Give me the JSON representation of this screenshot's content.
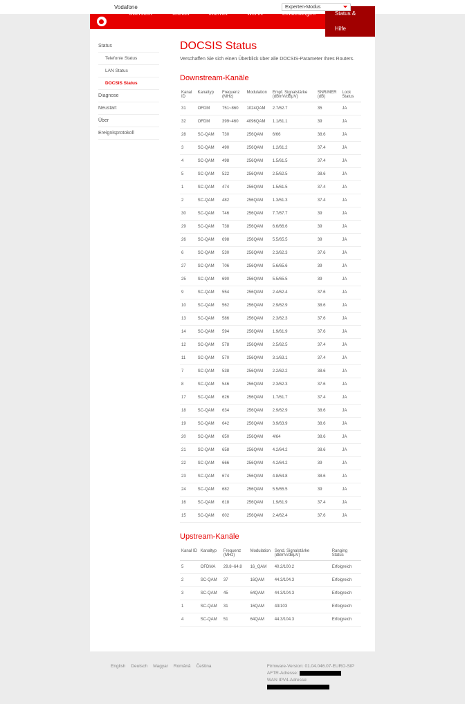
{
  "brand": "Vodafone",
  "mode": "Experten-Modus",
  "nav": [
    "Übersicht",
    "Telefon",
    "Internet",
    "WLAN",
    "Einstellungen",
    "Status & Hilfe"
  ],
  "nav_active": 5,
  "sidebar": [
    {
      "label": "Status",
      "sub": false
    },
    {
      "label": "Telefonie Status",
      "sub": true
    },
    {
      "label": "LAN Status",
      "sub": true
    },
    {
      "label": "DOCSIS Status",
      "sub": true,
      "active": true
    },
    {
      "label": "Diagnose",
      "sub": false
    },
    {
      "label": "Neustart",
      "sub": false
    },
    {
      "label": "Über",
      "sub": false
    },
    {
      "label": "Ereignisprotokoll",
      "sub": false
    }
  ],
  "title": "DOCSIS Status",
  "description": "Verschaffen Sie sich einen Überblick über alle DOCSIS-Parameter Ihres Routers.",
  "downstream_title": "Downstream-Kanäle",
  "ds_headers": [
    "Kanal ID",
    "Kanaltyp",
    "Frequenz (MHz)",
    "Modulation",
    "Empf. Signalstärke (dBmV/dBμV)",
    "SNR/MER (dB)",
    "Lock Status"
  ],
  "ds_rows": [
    [
      "31",
      "OFDM",
      "751~860",
      "1024QAM",
      "2.7/62.7",
      "35",
      "JA"
    ],
    [
      "32",
      "OFDM",
      "399~460",
      "4096QAM",
      "1.1/61.1",
      "39",
      "JA"
    ],
    [
      "28",
      "SC-QAM",
      "730",
      "256QAM",
      "6/66",
      "38.6",
      "JA"
    ],
    [
      "3",
      "SC-QAM",
      "490",
      "256QAM",
      "1.2/61.2",
      "37.4",
      "JA"
    ],
    [
      "4",
      "SC-QAM",
      "498",
      "256QAM",
      "1.5/61.5",
      "37.4",
      "JA"
    ],
    [
      "5",
      "SC-QAM",
      "522",
      "256QAM",
      "2.5/62.5",
      "38.6",
      "JA"
    ],
    [
      "1",
      "SC-QAM",
      "474",
      "256QAM",
      "1.5/61.5",
      "37.4",
      "JA"
    ],
    [
      "2",
      "SC-QAM",
      "482",
      "256QAM",
      "1.3/61.3",
      "37.4",
      "JA"
    ],
    [
      "30",
      "SC-QAM",
      "746",
      "256QAM",
      "7.7/67.7",
      "39",
      "JA"
    ],
    [
      "29",
      "SC-QAM",
      "738",
      "256QAM",
      "6.6/66.6",
      "39",
      "JA"
    ],
    [
      "26",
      "SC-QAM",
      "698",
      "256QAM",
      "5.5/65.5",
      "39",
      "JA"
    ],
    [
      "6",
      "SC-QAM",
      "530",
      "256QAM",
      "2.3/62.3",
      "37.6",
      "JA"
    ],
    [
      "27",
      "SC-QAM",
      "706",
      "256QAM",
      "5.6/65.6",
      "39",
      "JA"
    ],
    [
      "25",
      "SC-QAM",
      "690",
      "256QAM",
      "5.5/65.5",
      "39",
      "JA"
    ],
    [
      "9",
      "SC-QAM",
      "554",
      "256QAM",
      "2.4/62.4",
      "37.6",
      "JA"
    ],
    [
      "10",
      "SC-QAM",
      "562",
      "256QAM",
      "2.9/62.9",
      "38.6",
      "JA"
    ],
    [
      "13",
      "SC-QAM",
      "586",
      "256QAM",
      "2.3/62.3",
      "37.6",
      "JA"
    ],
    [
      "14",
      "SC-QAM",
      "594",
      "256QAM",
      "1.9/61.9",
      "37.6",
      "JA"
    ],
    [
      "12",
      "SC-QAM",
      "578",
      "256QAM",
      "2.5/62.5",
      "37.4",
      "JA"
    ],
    [
      "11",
      "SC-QAM",
      "570",
      "256QAM",
      "3.1/63.1",
      "37.4",
      "JA"
    ],
    [
      "7",
      "SC-QAM",
      "538",
      "256QAM",
      "2.2/62.2",
      "38.6",
      "JA"
    ],
    [
      "8",
      "SC-QAM",
      "546",
      "256QAM",
      "2.3/62.3",
      "37.6",
      "JA"
    ],
    [
      "17",
      "SC-QAM",
      "626",
      "256QAM",
      "1.7/61.7",
      "37.4",
      "JA"
    ],
    [
      "18",
      "SC-QAM",
      "634",
      "256QAM",
      "2.9/62.9",
      "38.6",
      "JA"
    ],
    [
      "19",
      "SC-QAM",
      "642",
      "256QAM",
      "3.9/63.9",
      "38.6",
      "JA"
    ],
    [
      "20",
      "SC-QAM",
      "650",
      "256QAM",
      "4/64",
      "38.6",
      "JA"
    ],
    [
      "21",
      "SC-QAM",
      "658",
      "256QAM",
      "4.2/64.2",
      "38.6",
      "JA"
    ],
    [
      "22",
      "SC-QAM",
      "666",
      "256QAM",
      "4.2/64.2",
      "39",
      "JA"
    ],
    [
      "23",
      "SC-QAM",
      "674",
      "256QAM",
      "4.8/64.8",
      "38.6",
      "JA"
    ],
    [
      "24",
      "SC-QAM",
      "682",
      "256QAM",
      "5.5/65.5",
      "39",
      "JA"
    ],
    [
      "16",
      "SC-QAM",
      "618",
      "256QAM",
      "1.9/61.9",
      "37.4",
      "JA"
    ],
    [
      "15",
      "SC-QAM",
      "602",
      "256QAM",
      "2.4/62.4",
      "37.6",
      "JA"
    ]
  ],
  "upstream_title": "Upstream-Kanäle",
  "us_headers": [
    "Kanal ID",
    "Kanaltyp",
    "Frequenz (MHz)",
    "Modulation",
    "Send. Signalstärke (dBmV/dBμV)",
    "Ranging Status"
  ],
  "us_rows": [
    [
      "5",
      "OFDMA",
      "29.8~64.8",
      "16_QAM",
      "40.2/100.2",
      "Erfolgreich"
    ],
    [
      "2",
      "SC-QAM",
      "37",
      "16QAM",
      "44.3/104.3",
      "Erfolgreich"
    ],
    [
      "3",
      "SC-QAM",
      "45",
      "64QAM",
      "44.3/104.3",
      "Erfolgreich"
    ],
    [
      "1",
      "SC-QAM",
      "31",
      "16QAM",
      "43/103",
      "Erfolgreich"
    ],
    [
      "4",
      "SC-QAM",
      "51",
      "64QAM",
      "44.3/104.3",
      "Erfolgreich"
    ]
  ],
  "footer_langs": [
    "English",
    "Deutsch",
    "Magyar",
    "Română",
    "Čeština"
  ],
  "fw_label": "Firmware-Version:",
  "fw_value": "01.04.046.07-EURO-SIP",
  "aftr_label": "AFTR-Adresse:",
  "ipv6_label": "WAN IPV4-Adresse:"
}
